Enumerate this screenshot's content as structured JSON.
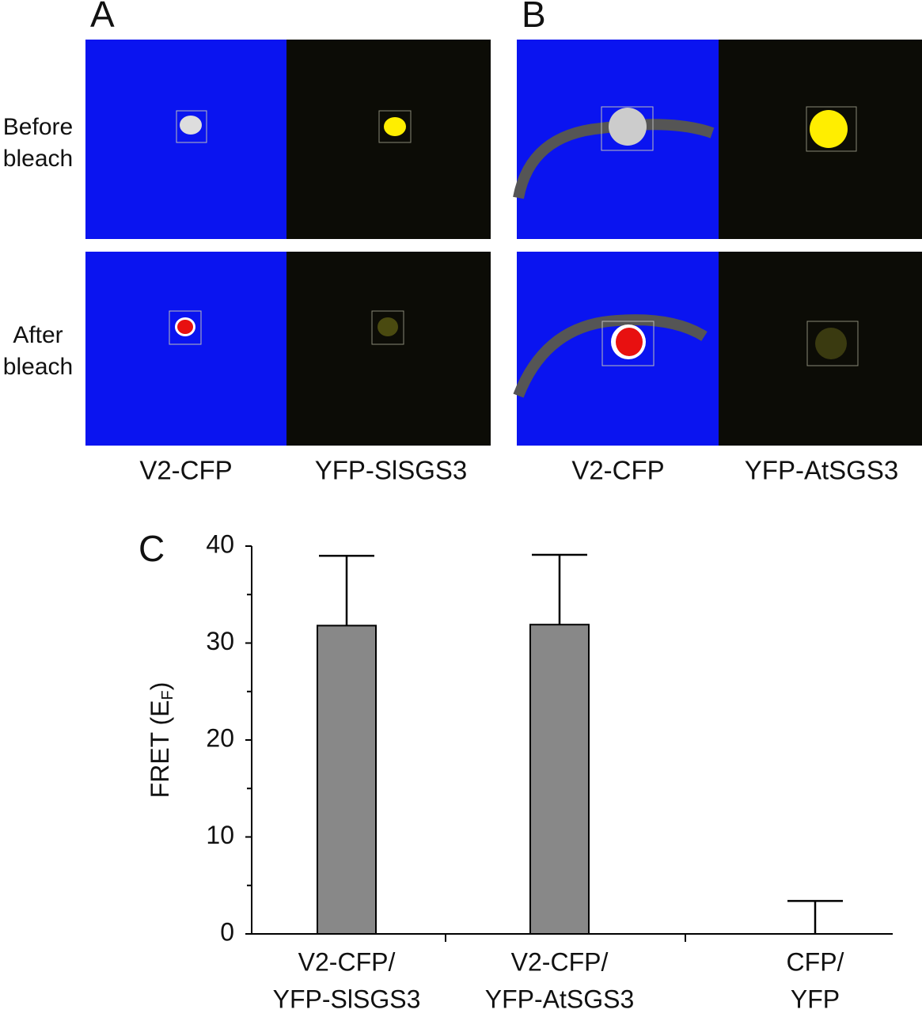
{
  "panels": [
    {
      "label": "A",
      "columns": [
        "V2-CFP",
        "YFP-SlSGS3"
      ]
    },
    {
      "label": "B",
      "columns": [
        "V2-CFP",
        "YFP-AtSGS3"
      ]
    }
  ],
  "rows": [
    [
      "Before",
      "bleach"
    ],
    [
      "After",
      "bleach"
    ]
  ],
  "chart_data": {
    "type": "bar",
    "panel_label": "C",
    "ylabel": [
      "FRET (E",
      "F",
      ")"
    ],
    "categories": [
      [
        "V2-CFP/",
        "YFP-SlSGS3"
      ],
      [
        "V2-CFP/",
        "YFP-AtSGS3"
      ],
      [
        "CFP/",
        "YFP"
      ]
    ],
    "values": [
      31.8,
      31.9,
      0
    ],
    "errors": [
      7.2,
      7.2,
      3.4
    ],
    "color": "#888888",
    "ylim": [
      0,
      40
    ],
    "yticks": [
      0,
      10,
      20,
      30,
      40
    ],
    "yminorticks": [
      5,
      15,
      25,
      35
    ]
  }
}
